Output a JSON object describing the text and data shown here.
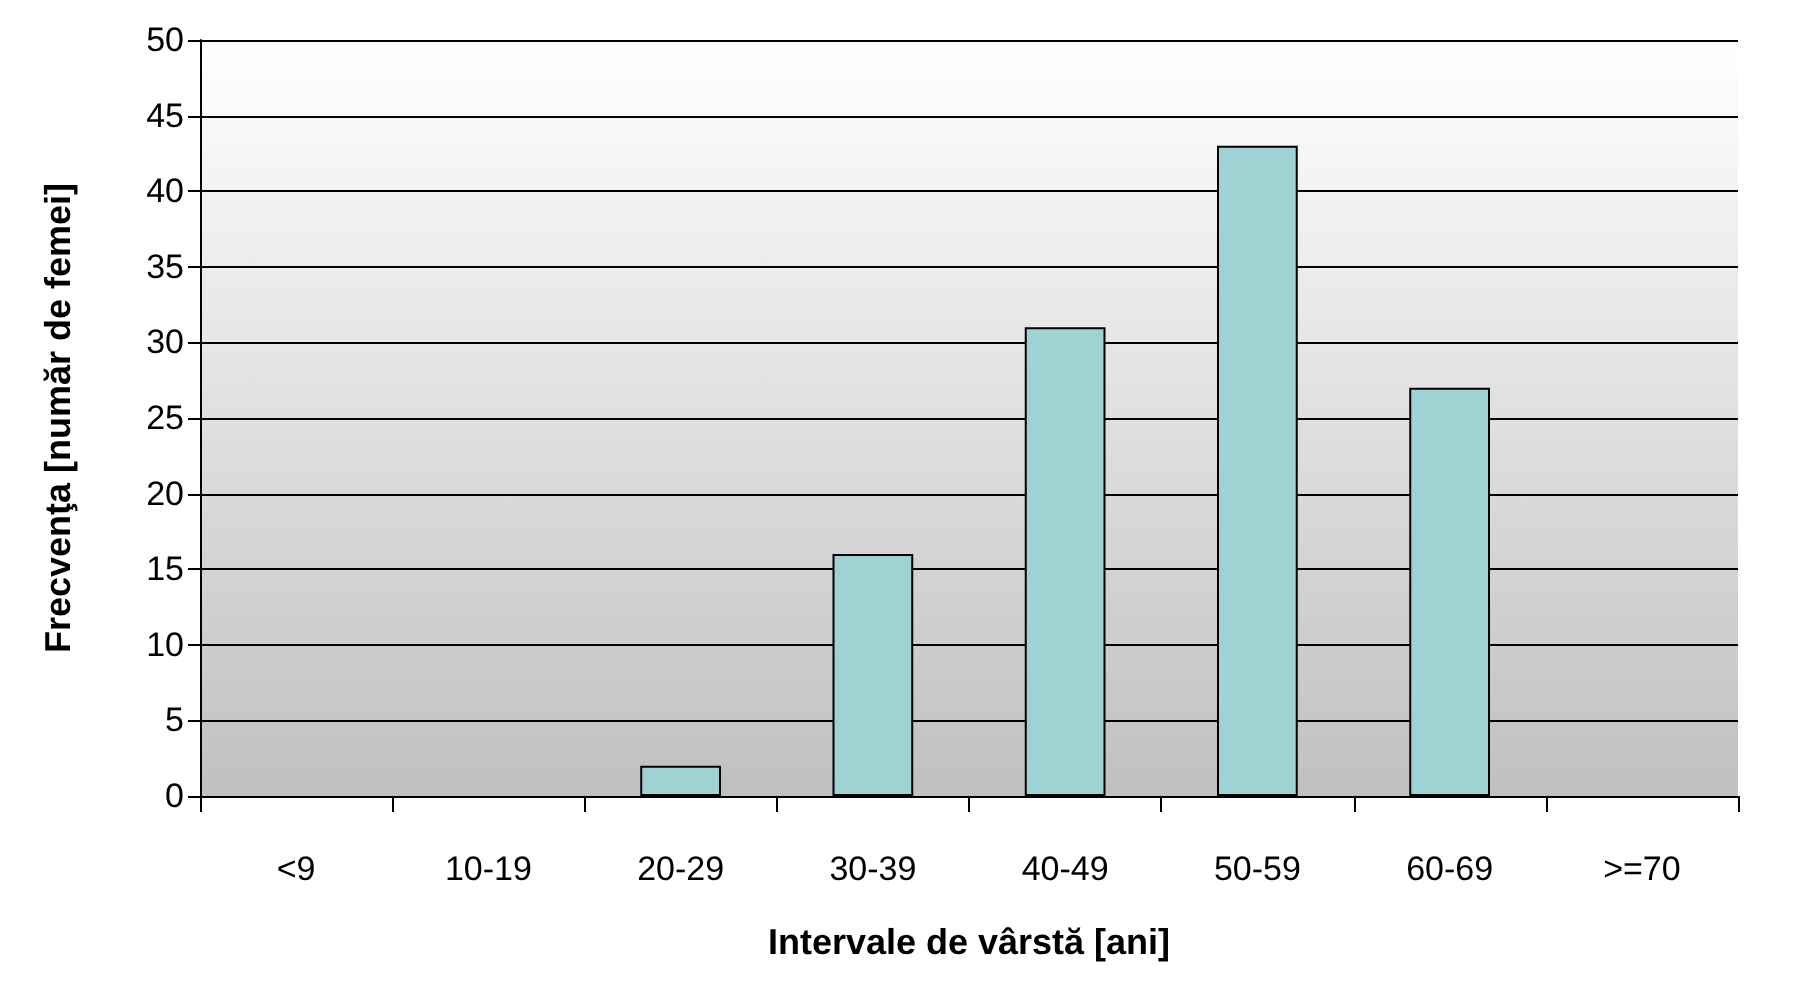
{
  "chart_data": {
    "type": "bar",
    "xlabel": "Intervale de vârstă [ani]",
    "ylabel": "Frecvenţa [număr de femei]",
    "categories": [
      "<9",
      "10-19",
      "20-29",
      "30-39",
      "40-49",
      "50-59",
      "60-69",
      ">=70"
    ],
    "values": [
      0,
      0,
      2,
      16,
      31,
      43,
      27,
      0
    ],
    "color": "#9fd3d3",
    "ylim": [
      0,
      50
    ],
    "yticks": [
      0,
      5,
      10,
      15,
      20,
      25,
      30,
      35,
      40,
      45,
      50
    ],
    "grid": "y"
  }
}
